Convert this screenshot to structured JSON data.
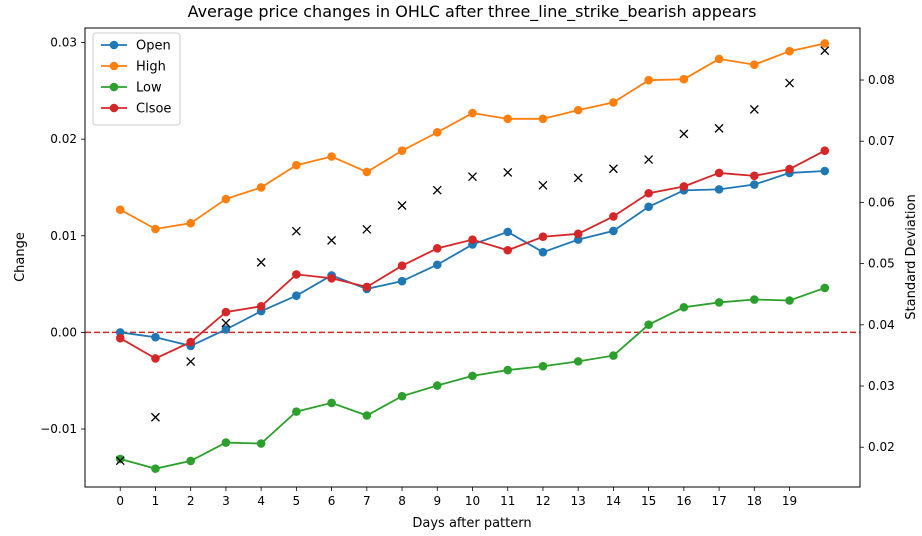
{
  "chart_data": {
    "type": "line",
    "title": "Average price changes in OHLC after three_line_strike_bearish appears",
    "xlabel": "Days after pattern",
    "ylabel": "Change",
    "y2label": "Standard Deviation",
    "x": [
      0,
      1,
      2,
      3,
      4,
      5,
      6,
      7,
      8,
      9,
      10,
      11,
      12,
      13,
      14,
      15,
      16,
      17,
      18,
      19,
      20
    ],
    "xticks": [
      0,
      1,
      2,
      3,
      4,
      5,
      6,
      7,
      8,
      9,
      10,
      11,
      12,
      13,
      14,
      15,
      16,
      17,
      18,
      19
    ],
    "xlim": [
      -1,
      21
    ],
    "ylim": [
      -0.016,
      0.0315
    ],
    "yticks": [
      -0.01,
      0.0,
      0.01,
      0.02,
      0.03
    ],
    "ytick_labels": [
      "−0.01",
      "0.00",
      "0.01",
      "0.02",
      "0.03"
    ],
    "y2lim": [
      0.0135,
      0.0885
    ],
    "y2ticks": [
      0.02,
      0.03,
      0.04,
      0.05,
      0.06,
      0.07,
      0.08
    ],
    "y2tick_labels": [
      "0.02",
      "0.03",
      "0.04",
      "0.05",
      "0.06",
      "0.07",
      "0.08"
    ],
    "zero_line": {
      "y": 0,
      "color": "#d62728",
      "style": "dashed"
    },
    "legend_position": "top-left",
    "series": [
      {
        "name": "Open",
        "color": "#1f77b4",
        "values": [
          0.0,
          -0.0005,
          -0.0014,
          0.0003,
          0.0022,
          0.0038,
          0.0059,
          0.0045,
          0.0053,
          0.007,
          0.0091,
          0.0104,
          0.0083,
          0.0096,
          0.0105,
          0.013,
          0.0147,
          0.0148,
          0.0153,
          0.0165,
          0.0167
        ]
      },
      {
        "name": "High",
        "color": "#ff7f0e",
        "values": [
          0.0127,
          0.0107,
          0.0113,
          0.0138,
          0.015,
          0.0173,
          0.0182,
          0.0166,
          0.0188,
          0.0207,
          0.0227,
          0.0221,
          0.0221,
          0.023,
          0.0238,
          0.0261,
          0.0262,
          0.0283,
          0.0277,
          0.0291,
          0.0299
        ]
      },
      {
        "name": "Low",
        "color": "#2ca02c",
        "values": [
          -0.0131,
          -0.0141,
          -0.0133,
          -0.0114,
          -0.0115,
          -0.0082,
          -0.0073,
          -0.0086,
          -0.0066,
          -0.0055,
          -0.0045,
          -0.0039,
          -0.0035,
          -0.003,
          -0.0024,
          0.0008,
          0.0026,
          0.0031,
          0.0034,
          0.0033,
          0.0046
        ]
      },
      {
        "name": "Clsoe",
        "color": "#d62728",
        "values": [
          -0.0006,
          -0.0027,
          -0.001,
          0.0021,
          0.0027,
          0.006,
          0.0056,
          0.0047,
          0.0069,
          0.0087,
          0.0096,
          0.0085,
          0.0099,
          0.0102,
          0.012,
          0.0144,
          0.0151,
          0.0165,
          0.0162,
          0.0169,
          0.0188
        ]
      }
    ],
    "std_series": {
      "axis": "right",
      "marker": "x",
      "color": "#000000",
      "values": [
        0.0178,
        0.0249,
        0.034,
        0.0403,
        0.0502,
        0.0553,
        0.0538,
        0.0556,
        0.0595,
        0.062,
        0.0642,
        0.0649,
        0.0628,
        0.064,
        0.0655,
        0.067,
        0.0712,
        0.0721,
        0.0752,
        0.0795,
        0.0848
      ]
    }
  }
}
